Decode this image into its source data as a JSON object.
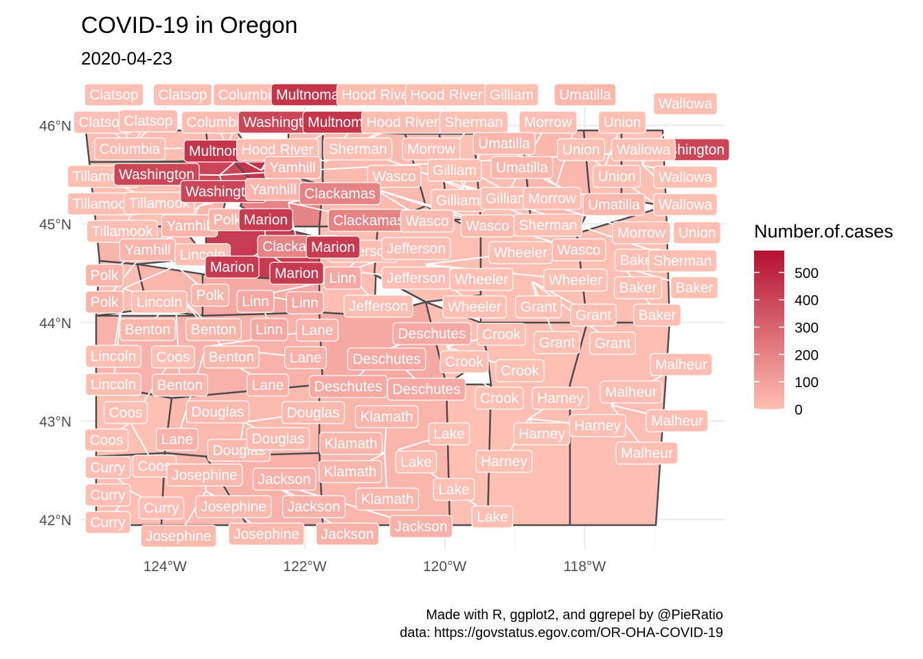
{
  "title": "COVID-19 in Oregon",
  "subtitle": "2020-04-23",
  "caption": {
    "line1": "Made with R, ggplot2, and ggrepel by @PieRatio",
    "line2": "data: https://govstatus.egov.com/OR-OHA-COVID-19"
  },
  "legend": {
    "title": "Number.of.cases",
    "ticks": [
      "500",
      "400",
      "300",
      "200",
      "100",
      "0"
    ],
    "tick_values": [
      500,
      400,
      300,
      200,
      100,
      0
    ],
    "max": 580,
    "color_low": "#ffbfb3",
    "color_high": "#b4112f"
  },
  "chart_data": {
    "type": "map",
    "x_ticks": [
      "124°W",
      "122°W",
      "120°W",
      "118°W"
    ],
    "x_tick_values": [
      -124,
      -122,
      -120,
      -118
    ],
    "y_ticks": [
      "46°N",
      "45°N",
      "44°N",
      "43°N",
      "42°N"
    ],
    "y_tick_values": [
      46,
      45,
      44,
      43,
      42
    ],
    "xlim": [
      -125.2,
      -116.0
    ],
    "ylim": [
      41.7,
      46.45
    ],
    "grid": true,
    "legend_position": "right"
  },
  "counties": [
    {
      "name": "Clatsop",
      "value": 2
    },
    {
      "name": "Columbia",
      "value": 10
    },
    {
      "name": "Multnomah",
      "value": 460
    },
    {
      "name": "Hood River",
      "value": 7
    },
    {
      "name": "Gilliam",
      "value": 1
    },
    {
      "name": "Umatilla",
      "value": 27
    },
    {
      "name": "Wallowa",
      "value": 0
    },
    {
      "name": "Washington",
      "value": 400
    },
    {
      "name": "Sherman",
      "value": 0
    },
    {
      "name": "Morrow",
      "value": 2
    },
    {
      "name": "Union",
      "value": 1
    },
    {
      "name": "Tillamook",
      "value": 1
    },
    {
      "name": "Yamhill",
      "value": 33
    },
    {
      "name": "Clackamas",
      "value": 200
    },
    {
      "name": "Wasco",
      "value": 12
    },
    {
      "name": "Polk",
      "value": 35
    },
    {
      "name": "Marion",
      "value": 440
    },
    {
      "name": "Lincoln",
      "value": 4
    },
    {
      "name": "Jefferson",
      "value": 2
    },
    {
      "name": "Linn",
      "value": 75
    },
    {
      "name": "Wheeler",
      "value": 0
    },
    {
      "name": "Baker",
      "value": 1
    },
    {
      "name": "Grant",
      "value": 1
    },
    {
      "name": "Benton",
      "value": 29
    },
    {
      "name": "Lane",
      "value": 43
    },
    {
      "name": "Deschutes",
      "value": 70
    },
    {
      "name": "Crook",
      "value": 1
    },
    {
      "name": "Coos",
      "value": 1
    },
    {
      "name": "Malheur",
      "value": 2
    },
    {
      "name": "Douglas",
      "value": 20
    },
    {
      "name": "Harney",
      "value": 0
    },
    {
      "name": "Klamath",
      "value": 29
    },
    {
      "name": "Lake",
      "value": 0
    },
    {
      "name": "Curry",
      "value": 2
    },
    {
      "name": "Josephine",
      "value": 20
    },
    {
      "name": "Jackson",
      "value": 45
    }
  ],
  "labels": [
    {
      "county": "Clatsop",
      "text": "Clatsop"
    },
    {
      "county": "Clatsop",
      "text": "Clatsop"
    },
    {
      "county": "Columbia",
      "text": "Columbia"
    },
    {
      "county": "Multnomah",
      "text": "Multnomah"
    },
    {
      "county": "Hood River",
      "text": "Hood River"
    },
    {
      "county": "Hood River",
      "text": "Hood River"
    },
    {
      "county": "Gilliam",
      "text": "Gilliam"
    },
    {
      "county": "Umatilla",
      "text": "Umatilla"
    },
    {
      "county": "Wallowa",
      "text": "Wallowa"
    },
    {
      "county": "Clatsop",
      "text": "Clatsop"
    },
    {
      "county": "Clatsop",
      "text": "Clatsop"
    },
    {
      "county": "Columbia",
      "text": "Columbia"
    },
    {
      "county": "Washington",
      "text": "Washington"
    },
    {
      "county": "Multnomah",
      "text": "Multnomah"
    },
    {
      "county": "Hood River",
      "text": "Hood River"
    },
    {
      "county": "Sherman",
      "text": "Sherman"
    },
    {
      "county": "Morrow",
      "text": "Morrow"
    },
    {
      "county": "Union",
      "text": "Union"
    },
    {
      "county": "Washington",
      "text": "Washington"
    },
    {
      "county": "Columbia",
      "text": "Columbia"
    },
    {
      "county": "Multnomah",
      "text": "Multnomah"
    },
    {
      "county": "Hood River",
      "text": "Hood River"
    },
    {
      "county": "Sherman",
      "text": "Sherman"
    },
    {
      "county": "Morrow",
      "text": "Morrow"
    },
    {
      "county": "Umatilla",
      "text": "Umatilla"
    },
    {
      "county": "Union",
      "text": "Union"
    },
    {
      "county": "Wallowa",
      "text": "Wallowa"
    },
    {
      "county": "Tillamook",
      "text": "Tillamook"
    },
    {
      "county": "Washington",
      "text": "Washington"
    },
    {
      "county": "Yamhill",
      "text": "Yamhill"
    },
    {
      "county": "Wasco",
      "text": "Wasco"
    },
    {
      "county": "Gilliam",
      "text": "Gilliam"
    },
    {
      "county": "Umatilla",
      "text": "Umatilla"
    },
    {
      "county": "Union",
      "text": "Union"
    },
    {
      "county": "Wallowa",
      "text": "Wallowa"
    },
    {
      "county": "Tillamook",
      "text": "Tillamook"
    },
    {
      "county": "Tillamook",
      "text": "Tillamook"
    },
    {
      "county": "Washington",
      "text": "Washington"
    },
    {
      "county": "Yamhill",
      "text": "Yamhill"
    },
    {
      "county": "Clackamas",
      "text": "Clackamas"
    },
    {
      "county": "Gilliam",
      "text": "Gilliam"
    },
    {
      "county": "Gilliam",
      "text": "Gilliam"
    },
    {
      "county": "Morrow",
      "text": "Morrow"
    },
    {
      "county": "Umatilla",
      "text": "Umatilla"
    },
    {
      "county": "Wallowa",
      "text": "Wallowa"
    },
    {
      "county": "Tillamook",
      "text": "Tillamook"
    },
    {
      "county": "Yamhill",
      "text": "Yamhill"
    },
    {
      "county": "Polk",
      "text": "Polk"
    },
    {
      "county": "Marion",
      "text": "Marion"
    },
    {
      "county": "Clackamas",
      "text": "Clackamas"
    },
    {
      "county": "Wasco",
      "text": "Wasco"
    },
    {
      "county": "Wasco",
      "text": "Wasco"
    },
    {
      "county": "Sherman",
      "text": "Sherman"
    },
    {
      "county": "Morrow",
      "text": "Morrow"
    },
    {
      "county": "Union",
      "text": "Union"
    },
    {
      "county": "Yamhill",
      "text": "Yamhill"
    },
    {
      "county": "Lincoln",
      "text": "Lincoln"
    },
    {
      "county": "Marion",
      "text": "Marion"
    },
    {
      "county": "Clackamas",
      "text": "Clackamas"
    },
    {
      "county": "Jefferson",
      "text": "Jefferson"
    },
    {
      "county": "Jefferson",
      "text": "Jefferson"
    },
    {
      "county": "Wheeler",
      "text": "Wheeler"
    },
    {
      "county": "Wasco",
      "text": "Wasco"
    },
    {
      "county": "Baker",
      "text": "Baker"
    },
    {
      "county": "Sherman",
      "text": "Sherman"
    },
    {
      "county": "Marion",
      "text": "Marion"
    },
    {
      "county": "Marion",
      "text": "Marion"
    },
    {
      "county": "Polk",
      "text": "Polk"
    },
    {
      "county": "Linn",
      "text": "Linn"
    },
    {
      "county": "Jefferson",
      "text": "Jefferson"
    },
    {
      "county": "Wheeler",
      "text": "Wheeler"
    },
    {
      "county": "Wheeler",
      "text": "Wheeler"
    },
    {
      "county": "Baker",
      "text": "Baker"
    },
    {
      "county": "Baker",
      "text": "Baker"
    },
    {
      "county": "Polk",
      "text": "Polk"
    },
    {
      "county": "Lincoln",
      "text": "Lincoln"
    },
    {
      "county": "Polk",
      "text": "Polk"
    },
    {
      "county": "Linn",
      "text": "Linn"
    },
    {
      "county": "Linn",
      "text": "Linn"
    },
    {
      "county": "Jefferson",
      "text": "Jefferson"
    },
    {
      "county": "Wheeler",
      "text": "Wheeler"
    },
    {
      "county": "Grant",
      "text": "Grant"
    },
    {
      "county": "Grant",
      "text": "Grant"
    },
    {
      "county": "Baker",
      "text": "Baker"
    },
    {
      "county": "Benton",
      "text": "Benton"
    },
    {
      "county": "Benton",
      "text": "Benton"
    },
    {
      "county": "Linn",
      "text": "Linn"
    },
    {
      "county": "Lane",
      "text": "Lane"
    },
    {
      "county": "Deschutes",
      "text": "Deschutes"
    },
    {
      "county": "Crook",
      "text": "Crook"
    },
    {
      "county": "Grant",
      "text": "Grant"
    },
    {
      "county": "Grant",
      "text": "Grant"
    },
    {
      "county": "Lincoln",
      "text": "Lincoln"
    },
    {
      "county": "Coos",
      "text": "Coos"
    },
    {
      "county": "Benton",
      "text": "Benton"
    },
    {
      "county": "Lane",
      "text": "Lane"
    },
    {
      "county": "Deschutes",
      "text": "Deschutes"
    },
    {
      "county": "Crook",
      "text": "Crook"
    },
    {
      "county": "Crook",
      "text": "Crook"
    },
    {
      "county": "Malheur",
      "text": "Malheur"
    },
    {
      "county": "Lincoln",
      "text": "Lincoln"
    },
    {
      "county": "Benton",
      "text": "Benton"
    },
    {
      "county": "Lane",
      "text": "Lane"
    },
    {
      "county": "Deschutes",
      "text": "Deschutes"
    },
    {
      "county": "Deschutes",
      "text": "Deschutes"
    },
    {
      "county": "Crook",
      "text": "Crook"
    },
    {
      "county": "Harney",
      "text": "Harney"
    },
    {
      "county": "Malheur",
      "text": "Malheur"
    },
    {
      "county": "Coos",
      "text": "Coos"
    },
    {
      "county": "Douglas",
      "text": "Douglas"
    },
    {
      "county": "Douglas",
      "text": "Douglas"
    },
    {
      "county": "Klamath",
      "text": "Klamath"
    },
    {
      "county": "Harney",
      "text": "Harney"
    },
    {
      "county": "Malheur",
      "text": "Malheur"
    },
    {
      "county": "Coos",
      "text": "Coos"
    },
    {
      "county": "Lane",
      "text": "Lane"
    },
    {
      "county": "Douglas",
      "text": "Douglas"
    },
    {
      "county": "Douglas",
      "text": "Douglas"
    },
    {
      "county": "Klamath",
      "text": "Klamath"
    },
    {
      "county": "Lake",
      "text": "Lake"
    },
    {
      "county": "Harney",
      "text": "Harney"
    },
    {
      "county": "Malheur",
      "text": "Malheur"
    },
    {
      "county": "Curry",
      "text": "Curry"
    },
    {
      "county": "Coos",
      "text": "Coos"
    },
    {
      "county": "Josephine",
      "text": "Josephine"
    },
    {
      "county": "Jackson",
      "text": "Jackson"
    },
    {
      "county": "Klamath",
      "text": "Klamath"
    },
    {
      "county": "Lake",
      "text": "Lake"
    },
    {
      "county": "Harney",
      "text": "Harney"
    },
    {
      "county": "Curry",
      "text": "Curry"
    },
    {
      "county": "Curry",
      "text": "Curry"
    },
    {
      "county": "Josephine",
      "text": "Josephine"
    },
    {
      "county": "Jackson",
      "text": "Jackson"
    },
    {
      "county": "Klamath",
      "text": "Klamath"
    },
    {
      "county": "Lake",
      "text": "Lake"
    },
    {
      "county": "Curry",
      "text": "Curry"
    },
    {
      "county": "Josephine",
      "text": "Josephine"
    },
    {
      "county": "Josephine",
      "text": "Josephine"
    },
    {
      "county": "Jackson",
      "text": "Jackson"
    },
    {
      "county": "Jackson",
      "text": "Jackson"
    },
    {
      "county": "Lake",
      "text": "Lake"
    }
  ]
}
